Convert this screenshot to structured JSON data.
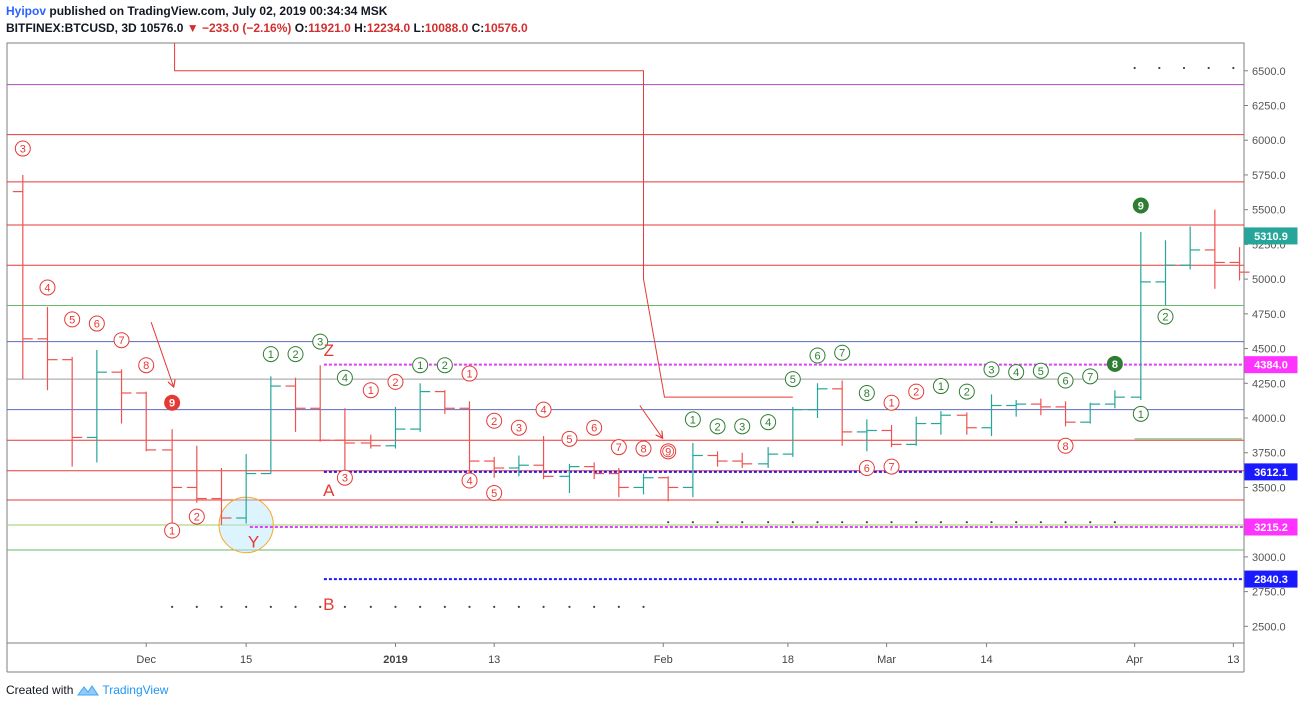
{
  "header": {
    "author": "Hyipov",
    "published": "published on TradingView.com, July 02, 2019 00:34:34 MSK",
    "symbol": "BITFINEX:BTCUSD, 3D",
    "last": "10576.0",
    "change": "−233.0 (−2.16%)",
    "o_label": "O:",
    "o": "11921.0",
    "h_label": "H:",
    "h": "12234.0",
    "l_label": "L:",
    "l": "10088.0",
    "c_label": "C:",
    "c": "10576.0"
  },
  "footer": {
    "created": "Created with",
    "brand": "TradingView"
  },
  "colors": {
    "up": "#26a69a",
    "down": "#ef5350",
    "red_line": "#e53935",
    "green_line": "#66bb6a",
    "blue_dotted": "#1a1aff",
    "magenta_dotted": "#e040fb",
    "violet_line": "#ab47bc",
    "blue_line": "#5c6bc0",
    "gray_line": "#9e9e9e",
    "count_red": "#e53935",
    "count_green": "#2e7d32"
  },
  "chart_data": {
    "type": "ohlc",
    "ylim": [
      2380,
      6700
    ],
    "xlim": [
      0,
      100
    ],
    "y_ticks": [
      "6500.0",
      "6250.0",
      "6000.0",
      "5750.0",
      "5500.0",
      "5250.0",
      "5000.0",
      "4750.0",
      "4500.0",
      "4250.0",
      "4000.0",
      "3750.0",
      "3500.0",
      "3250.0",
      "3000.0",
      "2750.0",
      "2500.0"
    ],
    "y_tick_values": [
      6500,
      6250,
      6000,
      5750,
      5500,
      5250,
      5000,
      4750,
      4500,
      4250,
      4000,
      3750,
      3500,
      3250,
      3000,
      2750,
      2500
    ],
    "x_ticks": [
      {
        "label": "Dec",
        "x": 11.2
      },
      {
        "label": "15",
        "x": 19.3
      },
      {
        "label": "2019",
        "x": 31.4,
        "bold": true
      },
      {
        "label": "13",
        "x": 39.4
      },
      {
        "label": "Feb",
        "x": 53.1
      },
      {
        "label": "18",
        "x": 63.2
      },
      {
        "label": "Mar",
        "x": 71.2
      },
      {
        "label": "14",
        "x": 79.3
      },
      {
        "label": "Apr",
        "x": 91.3
      },
      {
        "label": "13",
        "x": 99.3
      }
    ],
    "bars": [
      {
        "x": 1.2,
        "o": 5630,
        "h": 5750,
        "l": 4280,
        "c": 4570
      },
      {
        "x": 3.2,
        "o": 4570,
        "h": 4800,
        "l": 4200,
        "c": 4420
      },
      {
        "x": 5.2,
        "o": 4420,
        "h": 4440,
        "l": 3650,
        "c": 3860
      },
      {
        "x": 7.2,
        "o": 3860,
        "h": 4490,
        "l": 3680,
        "c": 4330
      },
      {
        "x": 9.2,
        "o": 4330,
        "h": 4350,
        "l": 3960,
        "c": 4180
      },
      {
        "x": 11.2,
        "o": 4180,
        "h": 4190,
        "l": 3760,
        "c": 3770
      },
      {
        "x": 13.3,
        "o": 3770,
        "h": 3920,
        "l": 3240,
        "c": 3500
      },
      {
        "x": 15.3,
        "o": 3500,
        "h": 3800,
        "l": 3390,
        "c": 3420
      },
      {
        "x": 17.3,
        "o": 3420,
        "h": 3640,
        "l": 3230,
        "c": 3280
      },
      {
        "x": 19.3,
        "o": 3280,
        "h": 3740,
        "l": 3240,
        "c": 3600
      },
      {
        "x": 21.3,
        "o": 3600,
        "h": 4300,
        "l": 3600,
        "c": 4230
      },
      {
        "x": 23.3,
        "o": 4230,
        "h": 4290,
        "l": 3900,
        "c": 4070
      },
      {
        "x": 25.3,
        "o": 4070,
        "h": 4380,
        "l": 3830,
        "c": 3840
      },
      {
        "x": 27.3,
        "o": 3840,
        "h": 4070,
        "l": 3620,
        "c": 3820
      },
      {
        "x": 29.4,
        "o": 3820,
        "h": 3880,
        "l": 3780,
        "c": 3800
      },
      {
        "x": 31.4,
        "o": 3800,
        "h": 4080,
        "l": 3780,
        "c": 3920
      },
      {
        "x": 33.4,
        "o": 3920,
        "h": 4250,
        "l": 3900,
        "c": 4190
      },
      {
        "x": 35.4,
        "o": 4190,
        "h": 4200,
        "l": 4030,
        "c": 4070
      },
      {
        "x": 37.4,
        "o": 4070,
        "h": 4120,
        "l": 3600,
        "c": 3690
      },
      {
        "x": 39.4,
        "o": 3690,
        "h": 3720,
        "l": 3570,
        "c": 3640
      },
      {
        "x": 41.4,
        "o": 3640,
        "h": 3730,
        "l": 3580,
        "c": 3660
      },
      {
        "x": 43.4,
        "o": 3660,
        "h": 3870,
        "l": 3560,
        "c": 3580
      },
      {
        "x": 45.5,
        "o": 3580,
        "h": 3670,
        "l": 3460,
        "c": 3650
      },
      {
        "x": 47.5,
        "o": 3650,
        "h": 3680,
        "l": 3560,
        "c": 3600
      },
      {
        "x": 49.5,
        "o": 3600,
        "h": 3640,
        "l": 3430,
        "c": 3500
      },
      {
        "x": 51.5,
        "o": 3500,
        "h": 3600,
        "l": 3450,
        "c": 3570
      },
      {
        "x": 53.5,
        "o": 3570,
        "h": 3580,
        "l": 3400,
        "c": 3500
      },
      {
        "x": 55.5,
        "o": 3500,
        "h": 3820,
        "l": 3430,
        "c": 3730
      },
      {
        "x": 57.5,
        "o": 3730,
        "h": 3760,
        "l": 3650,
        "c": 3690
      },
      {
        "x": 59.5,
        "o": 3690,
        "h": 3750,
        "l": 3640,
        "c": 3670
      },
      {
        "x": 61.6,
        "o": 3670,
        "h": 3790,
        "l": 3640,
        "c": 3740
      },
      {
        "x": 63.6,
        "o": 3740,
        "h": 4080,
        "l": 3720,
        "c": 4060
      },
      {
        "x": 65.6,
        "o": 4060,
        "h": 4250,
        "l": 4000,
        "c": 4210
      },
      {
        "x": 67.6,
        "o": 4210,
        "h": 4270,
        "l": 3800,
        "c": 3900
      },
      {
        "x": 69.6,
        "o": 3900,
        "h": 3990,
        "l": 3760,
        "c": 3910
      },
      {
        "x": 71.6,
        "o": 3910,
        "h": 3950,
        "l": 3790,
        "c": 3810
      },
      {
        "x": 73.6,
        "o": 3810,
        "h": 4010,
        "l": 3800,
        "c": 3960
      },
      {
        "x": 75.6,
        "o": 3960,
        "h": 4050,
        "l": 3880,
        "c": 4020
      },
      {
        "x": 77.7,
        "o": 4020,
        "h": 4040,
        "l": 3880,
        "c": 3930
      },
      {
        "x": 79.7,
        "o": 3930,
        "h": 4170,
        "l": 3870,
        "c": 4090
      },
      {
        "x": 81.7,
        "o": 4090,
        "h": 4130,
        "l": 4010,
        "c": 4100
      },
      {
        "x": 83.7,
        "o": 4100,
        "h": 4140,
        "l": 4020,
        "c": 4080
      },
      {
        "x": 85.7,
        "o": 4080,
        "h": 4120,
        "l": 3940,
        "c": 3970
      },
      {
        "x": 87.7,
        "o": 3970,
        "h": 4110,
        "l": 3960,
        "c": 4100
      },
      {
        "x": 89.7,
        "o": 4100,
        "h": 4200,
        "l": 4070,
        "c": 4150
      },
      {
        "x": 91.8,
        "o": 4150,
        "h": 5340,
        "l": 4130,
        "c": 4980
      },
      {
        "x": 93.8,
        "o": 4980,
        "h": 5280,
        "l": 4810,
        "c": 5100
      },
      {
        "x": 95.8,
        "o": 5100,
        "h": 5380,
        "l": 5070,
        "c": 5210
      },
      {
        "x": 97.8,
        "o": 5210,
        "h": 5500,
        "l": 4930,
        "c": 5120
      },
      {
        "x": 99.8,
        "o": 5120,
        "h": 5230,
        "l": 4990,
        "c": 5050
      }
    ],
    "levels": [
      {
        "y": 6400,
        "kind": "violet",
        "label": null
      },
      {
        "y": 6040,
        "kind": "red",
        "label": null
      },
      {
        "y": 5700,
        "kind": "red",
        "label": null
      },
      {
        "y": 5390,
        "kind": "red",
        "label": null
      },
      {
        "y": 5100,
        "kind": "red",
        "label": null
      },
      {
        "y": 4810,
        "kind": "green",
        "label": null
      },
      {
        "y": 4550,
        "kind": "blue",
        "label": null
      },
      {
        "y": 4280,
        "kind": "gray",
        "label": null
      },
      {
        "y": 4060,
        "kind": "blue",
        "label": null
      },
      {
        "y": 3840,
        "kind": "red",
        "label": null
      },
      {
        "y": 3620,
        "kind": "red",
        "label": null
      },
      {
        "y": 3410,
        "kind": "red",
        "label": null
      },
      {
        "y": 3230,
        "kind": "olive",
        "label": null
      },
      {
        "y": 3050,
        "kind": "green",
        "label": null
      }
    ],
    "dotted_levels": [
      {
        "y": 4384,
        "x1": 25.6,
        "color": "magenta",
        "label": "4384.0"
      },
      {
        "y": 3612.1,
        "x1": 25.6,
        "color": "blue",
        "label": "3612.1"
      },
      {
        "y": 3215.2,
        "x1": 19.6,
        "color": "magenta",
        "label": "3215.2"
      },
      {
        "y": 2840.3,
        "x1": 25.6,
        "color": "blue",
        "label": "2840.3"
      }
    ],
    "price_label": {
      "y": 5310.9,
      "label": "5310.9"
    },
    "counts": [
      {
        "x": 1.2,
        "y": 5940,
        "t": "3",
        "c": "red"
      },
      {
        "x": 3.2,
        "y": 4940,
        "t": "4",
        "c": "red"
      },
      {
        "x": 5.2,
        "y": 4710,
        "t": "5",
        "c": "red"
      },
      {
        "x": 7.2,
        "y": 4680,
        "t": "6",
        "c": "red"
      },
      {
        "x": 9.2,
        "y": 4560,
        "t": "7",
        "c": "red"
      },
      {
        "x": 11.2,
        "y": 4380,
        "t": "8",
        "c": "red"
      },
      {
        "x": 13.3,
        "y": 4110,
        "t": "9",
        "c": "red",
        "filled": true
      },
      {
        "x": 13.3,
        "y": 3190,
        "t": "1",
        "c": "red"
      },
      {
        "x": 15.3,
        "y": 3290,
        "t": "2",
        "c": "red"
      },
      {
        "x": 21.3,
        "y": 4460,
        "t": "1",
        "c": "green"
      },
      {
        "x": 23.3,
        "y": 4460,
        "t": "2",
        "c": "green"
      },
      {
        "x": 25.3,
        "y": 4550,
        "t": "3",
        "c": "green"
      },
      {
        "x": 27.3,
        "y": 4290,
        "t": "4",
        "c": "green"
      },
      {
        "x": 27.3,
        "y": 3570,
        "t": "3",
        "c": "red"
      },
      {
        "x": 29.4,
        "y": 4200,
        "t": "1",
        "c": "red"
      },
      {
        "x": 31.4,
        "y": 4260,
        "t": "2",
        "c": "red"
      },
      {
        "x": 33.4,
        "y": 4380,
        "t": "1",
        "c": "green"
      },
      {
        "x": 35.4,
        "y": 4380,
        "t": "2",
        "c": "green"
      },
      {
        "x": 37.4,
        "y": 4320,
        "t": "1",
        "c": "red"
      },
      {
        "x": 37.4,
        "y": 3550,
        "t": "4",
        "c": "red"
      },
      {
        "x": 39.4,
        "y": 3980,
        "t": "2",
        "c": "red"
      },
      {
        "x": 39.4,
        "y": 3460,
        "t": "5",
        "c": "red"
      },
      {
        "x": 41.4,
        "y": 3930,
        "t": "3",
        "c": "red"
      },
      {
        "x": 43.4,
        "y": 4060,
        "t": "4",
        "c": "red"
      },
      {
        "x": 45.5,
        "y": 3850,
        "t": "5",
        "c": "red"
      },
      {
        "x": 47.5,
        "y": 3930,
        "t": "6",
        "c": "red"
      },
      {
        "x": 49.5,
        "y": 3790,
        "t": "7",
        "c": "red"
      },
      {
        "x": 51.5,
        "y": 3780,
        "t": "8",
        "c": "red"
      },
      {
        "x": 53.5,
        "y": 3760,
        "t": "9",
        "c": "red",
        "double": true
      },
      {
        "x": 55.5,
        "y": 3990,
        "t": "1",
        "c": "green"
      },
      {
        "x": 57.5,
        "y": 3940,
        "t": "2",
        "c": "green"
      },
      {
        "x": 59.5,
        "y": 3940,
        "t": "3",
        "c": "green"
      },
      {
        "x": 61.6,
        "y": 3970,
        "t": "4",
        "c": "green"
      },
      {
        "x": 63.6,
        "y": 4280,
        "t": "5",
        "c": "green"
      },
      {
        "x": 65.6,
        "y": 4450,
        "t": "6",
        "c": "green"
      },
      {
        "x": 67.6,
        "y": 4470,
        "t": "7",
        "c": "green"
      },
      {
        "x": 69.6,
        "y": 4180,
        "t": "8",
        "c": "green"
      },
      {
        "x": 69.6,
        "y": 3640,
        "t": "6",
        "c": "red"
      },
      {
        "x": 71.6,
        "y": 4110,
        "t": "1",
        "c": "red"
      },
      {
        "x": 71.6,
        "y": 3650,
        "t": "7",
        "c": "red"
      },
      {
        "x": 73.6,
        "y": 4190,
        "t": "2",
        "c": "red"
      },
      {
        "x": 75.6,
        "y": 4230,
        "t": "1",
        "c": "green"
      },
      {
        "x": 77.7,
        "y": 4190,
        "t": "2",
        "c": "green"
      },
      {
        "x": 79.7,
        "y": 4350,
        "t": "3",
        "c": "green"
      },
      {
        "x": 81.7,
        "y": 4330,
        "t": "4",
        "c": "green"
      },
      {
        "x": 83.7,
        "y": 4340,
        "t": "5",
        "c": "green"
      },
      {
        "x": 85.7,
        "y": 4270,
        "t": "6",
        "c": "green"
      },
      {
        "x": 85.7,
        "y": 3800,
        "t": "8",
        "c": "red"
      },
      {
        "x": 87.7,
        "y": 4300,
        "t": "7",
        "c": "green"
      },
      {
        "x": 89.7,
        "y": 4390,
        "t": "8",
        "c": "green",
        "filled": true
      },
      {
        "x": 91.8,
        "y": 4030,
        "t": "1",
        "c": "green"
      },
      {
        "x": 91.8,
        "y": 5530,
        "t": "9",
        "c": "green",
        "filled": true
      },
      {
        "x": 93.8,
        "y": 4730,
        "t": "2",
        "c": "green"
      }
    ],
    "annotations": [
      {
        "x": 26.0,
        "y": 4490,
        "t": "Z"
      },
      {
        "x": 26.0,
        "y": 3480,
        "t": "A"
      },
      {
        "x": 19.9,
        "y": 3110,
        "t": "Y"
      },
      {
        "x": 26.0,
        "y": 2660,
        "t": "B"
      }
    ],
    "step_line": [
      [
        13.5,
        6700
      ],
      [
        13.5,
        6500
      ],
      [
        51.5,
        6500
      ],
      [
        51.5,
        5000
      ],
      [
        53.2,
        4150
      ],
      [
        63.6,
        4150
      ]
    ],
    "arrows": [
      {
        "x1": 11.6,
        "y1": 4690,
        "x2": 13.4,
        "y2": 4230
      },
      {
        "x1": 51.2,
        "y1": 4090,
        "x2": 53.0,
        "y2": 3860
      }
    ],
    "small_green_line": {
      "x1": 91.3,
      "x2": 100,
      "y": 3850
    },
    "dot_rows": [
      {
        "y": 6520,
        "x": [
          91.3,
          93.3,
          95.3,
          97.3,
          99.3
        ]
      },
      {
        "y": 3250,
        "x": [
          53.5,
          55.5,
          57.5,
          59.5,
          61.6,
          63.6,
          65.6,
          67.6,
          69.6,
          71.6,
          73.6,
          75.6,
          77.7,
          79.7,
          81.7,
          83.7,
          85.7,
          87.7,
          89.7
        ]
      },
      {
        "y": 2640,
        "x": [
          13.3,
          15.3,
          17.3,
          19.3,
          21.3,
          23.3,
          25.3,
          27.3,
          29.4,
          31.4,
          33.4,
          35.4,
          37.4,
          39.4,
          41.4,
          43.4,
          45.5,
          47.5,
          49.5,
          51.5
        ]
      }
    ],
    "ellipse": {
      "x": 19.3,
      "y": 3230,
      "rx_frac": 2.2,
      "ry_data": 200
    }
  }
}
